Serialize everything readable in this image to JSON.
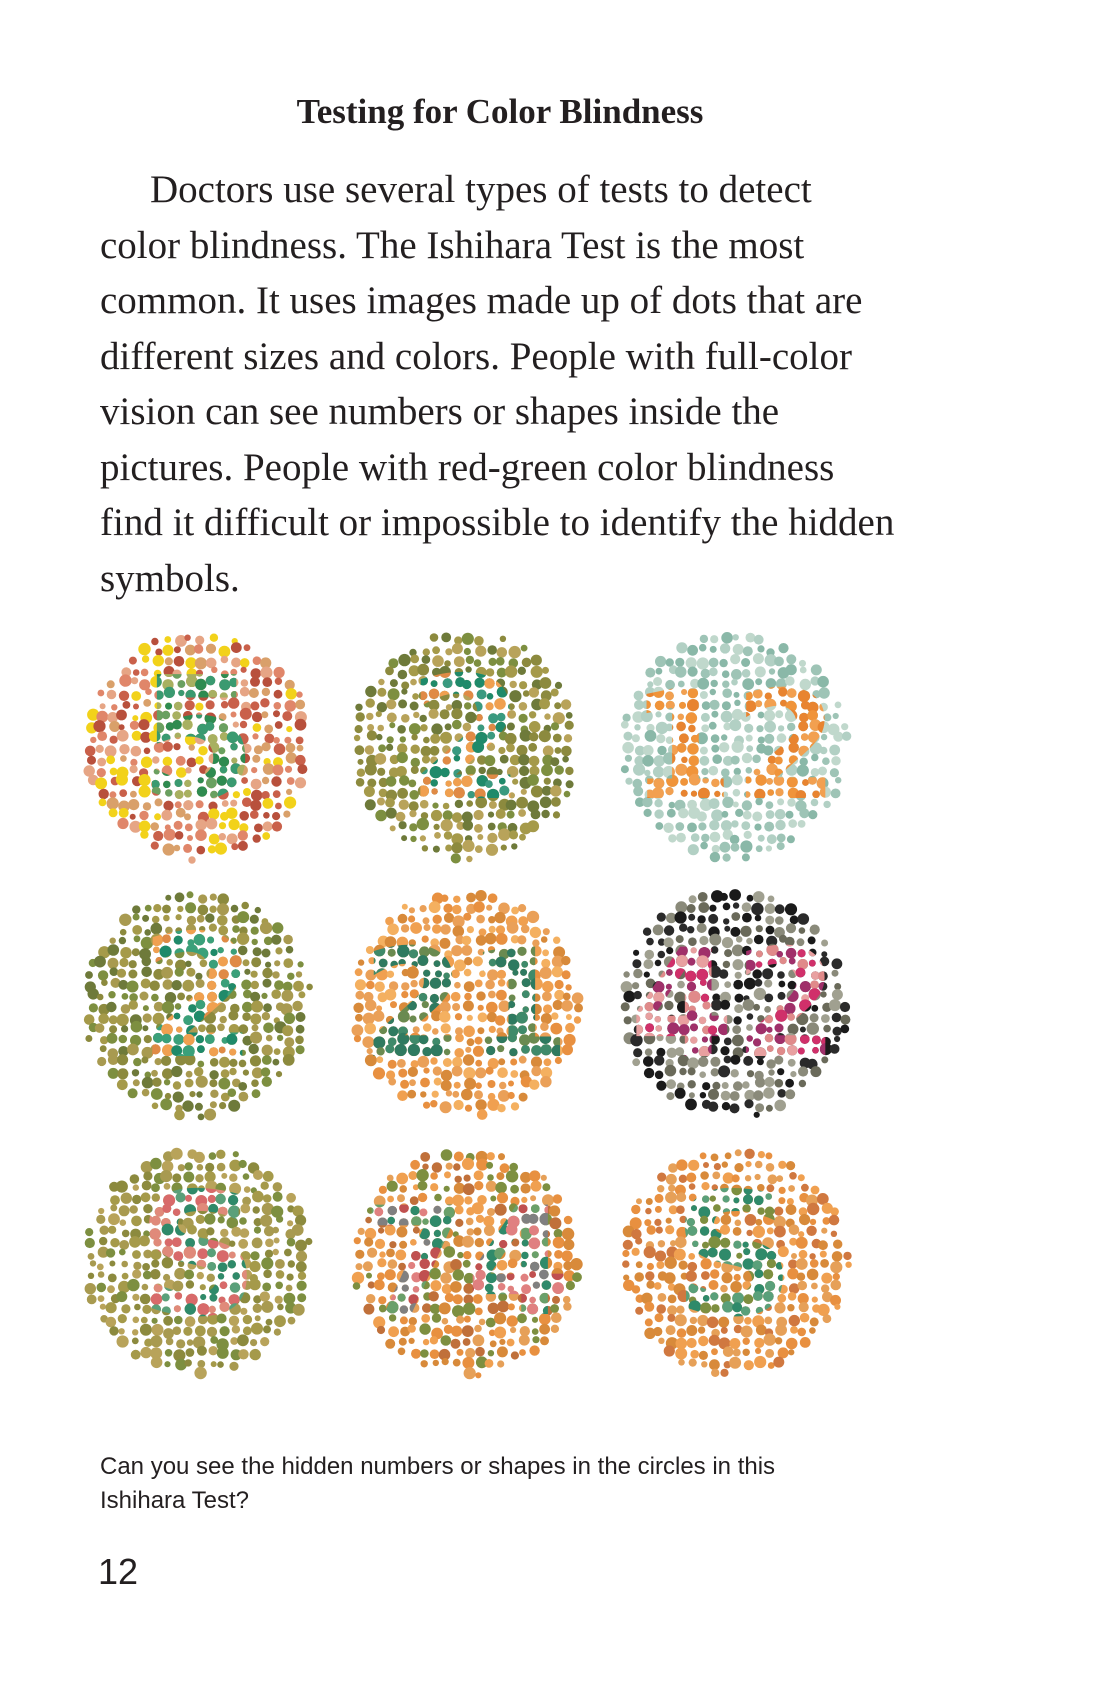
{
  "page": {
    "heading": "Testing for Color Blindness",
    "paragraph": "Doctors use several types of tests to detect color blindness. The Ishihara Test is the most common. It uses images made up of dots that are different sizes and colors. People with full-color vision can see numbers or shapes inside the pictures. People with red-green color blindness find it difficult or impossible to identify the hidden symbols.",
    "caption": "Can you see the hidden numbers or shapes in the circles in this Ishihara Test?",
    "page_number": "12"
  },
  "figure": {
    "plates": [
      {
        "background": [
          "#c9604a",
          "#e0866a",
          "#d9a06a",
          "#b8503c",
          "#e6a585",
          "#f2d21a"
        ],
        "figure": [
          "#2f8b50",
          "#6aa060",
          "#3a9a70",
          "#a8b060"
        ],
        "glyph": "5"
      },
      {
        "background": [
          "#8c8a3e",
          "#a59a4a",
          "#6e7a3a",
          "#b8a35a",
          "#7d8f40"
        ],
        "figure": [
          "#f0a050",
          "#e08a45",
          "#1f8a6a",
          "#3a9a80"
        ],
        "glyph": "2"
      },
      {
        "background": [
          "#9ec4b6",
          "#b2d0c4",
          "#8ab8a8",
          "#c0d8cc"
        ],
        "figure": [
          "#f0943a",
          "#e88430",
          "#f2a050"
        ],
        "glyph": "12"
      },
      {
        "background": [
          "#8c8a3e",
          "#a59a4a",
          "#6e7a3a",
          "#7d8f40",
          "#a89a50"
        ],
        "figure": [
          "#f0a050",
          "#e08a45",
          "#1f8a6a",
          "#3aa07a"
        ],
        "glyph": "2"
      },
      {
        "background": [
          "#f0a050",
          "#e89040",
          "#f4b060",
          "#d88a3a",
          "#eaa058"
        ],
        "figure": [
          "#2f7a60",
          "#3f8a6a",
          "#6a8a50"
        ],
        "glyph": "21"
      },
      {
        "background": [
          "#1a1a1a",
          "#2a2a2a",
          "#8a8a7a",
          "#6a6a5a",
          "#a0a090"
        ],
        "figure": [
          "#d0306a",
          "#e08a8a",
          "#a0306a",
          "#e8a0a0"
        ],
        "glyph": "42"
      },
      {
        "background": [
          "#8c8a3e",
          "#a59a4a",
          "#b8a35a",
          "#7d8f40",
          "#a89a50"
        ],
        "figure": [
          "#e08a7a",
          "#d86a6a",
          "#2f8a6a",
          "#5aa07a"
        ],
        "glyph": "S"
      },
      {
        "background": [
          "#f0a050",
          "#e89040",
          "#d88a3a",
          "#c0703a",
          "#e6a058",
          "#7d8f40"
        ],
        "figure": [
          "#e08080",
          "#c05050",
          "#2f8a6a",
          "#6aa06a",
          "#808080"
        ],
        "glyph": "74"
      },
      {
        "background": [
          "#f0a050",
          "#e89040",
          "#d88a3a",
          "#e6a058",
          "#d07840"
        ],
        "figure": [
          "#2f8a6a",
          "#5aa07a",
          "#7d8f40"
        ],
        "glyph": "S"
      }
    ]
  }
}
